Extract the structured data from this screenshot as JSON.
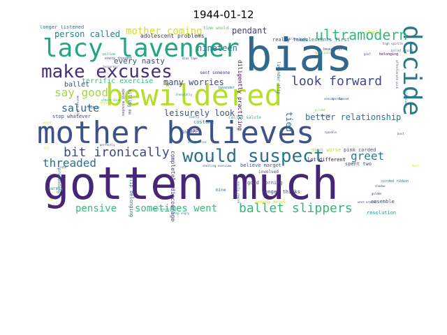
{
  "title": "1944-01-12",
  "words": [
    {
      "text": "gotten much",
      "color": "#482677"
    },
    {
      "text": "mother believes",
      "color": "#3b528b"
    },
    {
      "text": "bewildered",
      "color": "#b5de2b"
    },
    {
      "text": "bias",
      "color": "#31688e"
    },
    {
      "text": "lacy lavender",
      "color": "#21a585"
    },
    {
      "text": "decide",
      "color": "#2a788e"
    },
    {
      "text": "make excuses",
      "color": "#472d7b"
    },
    {
      "text": "would suspect",
      "color": "#2c728e"
    },
    {
      "text": "ultramodern",
      "color": "#35b779"
    },
    {
      "text": "look forward",
      "color": "#404688"
    },
    {
      "text": "ballet slippers",
      "color": "#35b779"
    },
    {
      "text": "bit ironically",
      "color": "#3e4989"
    },
    {
      "text": "threaded",
      "color": "#2e6e8e"
    },
    {
      "text": "greet",
      "color": "#2a788e"
    },
    {
      "text": "salute",
      "color": "#2f6c8e"
    },
    {
      "text": "say good",
      "color": "#a0da39"
    },
    {
      "text": "pensive",
      "color": "#38b977"
    },
    {
      "text": "sometimes went",
      "color": "#3aba76"
    },
    {
      "text": "mother coming",
      "color": "#d0e11c"
    },
    {
      "text": "person called",
      "color": "#277f8e"
    },
    {
      "text": "pendant",
      "color": "#433e85"
    },
    {
      "text": "nineteen",
      "color": "#2a788e"
    },
    {
      "text": "every nasty",
      "color": "#3e4a89"
    },
    {
      "text": "many worries",
      "color": "#3f4788"
    },
    {
      "text": "leisurely look",
      "color": "#3b528b"
    },
    {
      "text": "better relationship",
      "color": "#2c738e"
    },
    {
      "text": "terrific exercise",
      "color": "#3dbc74"
    },
    {
      "text": "ballet",
      "color": "#3e4a89"
    },
    {
      "text": "adolescent problems",
      "color": "#472d7b"
    },
    {
      "text": "tied",
      "color": "#2c738e"
    },
    {
      "text": "time would",
      "color": "#4ac16d"
    },
    {
      "text": "longer listened",
      "color": "#31688e"
    },
    {
      "text": "diligently practicing",
      "color": "#440154"
    },
    {
      "text": "completely discouraged",
      "color": "#46327e"
    },
    {
      "text": "really takes",
      "color": "#3b528b"
    },
    {
      "text": "adolescents first",
      "color": "#2a788e"
    },
    {
      "text": "lot different",
      "color": "#440154"
    },
    {
      "text": "pink corded",
      "color": "#3e4a89"
    },
    {
      "text": "believe margot",
      "color": "#3b528b"
    },
    {
      "text": "good morning",
      "color": "#3f4889"
    },
    {
      "text": "longer thinks",
      "color": "#433e85"
    },
    {
      "text": "stop whatever",
      "color": "#3e4989"
    },
    {
      "text": "costume",
      "color": "#2a788e"
    },
    {
      "text": "snap",
      "color": "#46337f"
    },
    {
      "text": "resolution",
      "color": "#21918c"
    },
    {
      "text": "ensemble",
      "color": "#3b528b"
    },
    {
      "text": "spent two",
      "color": "#3e4989"
    },
    {
      "text": "much worse",
      "color": "#b8de29"
    },
    {
      "text": "sent someone",
      "color": "#453581"
    },
    {
      "text": "called salute",
      "color": "#2fb47c"
    },
    {
      "text": "slip belonging",
      "color": "#2c728e"
    },
    {
      "text": "involved",
      "color": "#3e4989"
    },
    {
      "text": "mine",
      "color": "#2c738e"
    },
    {
      "text": "nobody knows",
      "color": "#d5e21a"
    },
    {
      "text": "warmly",
      "color": "#20928c"
    },
    {
      "text": "pretending",
      "color": "#2a788e"
    },
    {
      "text": "lavender slip",
      "color": "#2c728e"
    },
    {
      "text": "every thought",
      "color": "#3b528b"
    },
    {
      "text": "pillow",
      "color": "#20a386"
    },
    {
      "text": "bias tape",
      "color": "#46337f"
    },
    {
      "text": "ballet crazed",
      "color": "#2a788e"
    },
    {
      "text": "corded ribbon",
      "color": "#2a788e"
    },
    {
      "text": "went around",
      "color": "#3e4989"
    },
    {
      "text": "shadow",
      "color": "#3e4989"
    },
    {
      "text": "golden",
      "color": "#482878"
    },
    {
      "text": "limber",
      "color": "#3b528b"
    },
    {
      "text": "both called",
      "color": "#21918c"
    },
    {
      "text": "shelling overview",
      "color": "#3e4a89"
    },
    {
      "text": "easily rework",
      "color": "#31688e"
    },
    {
      "text": "nearly",
      "color": "#2a788e"
    },
    {
      "text": "killing me",
      "color": "#3b528b"
    },
    {
      "text": "spent minutes",
      "color": "#46327e"
    },
    {
      "text": "others cold",
      "color": "#20a386"
    },
    {
      "text": "willow",
      "color": "#3b528b"
    },
    {
      "text": "lavender",
      "color": "#2a788e"
    },
    {
      "text": "goof",
      "color": "#3e4989"
    },
    {
      "text": "belonging",
      "color": "#440154"
    },
    {
      "text": "high spirits",
      "color": "#3e4989"
    },
    {
      "text": "simply",
      "color": "#bddf26"
    },
    {
      "text": "beautiful",
      "color": "#3e4989"
    },
    {
      "text": "would always",
      "color": "#2a788e"
    },
    {
      "text": "affectionate pink",
      "color": "#3b528b"
    },
    {
      "text": "girlish",
      "color": "#73d056"
    },
    {
      "text": "decent",
      "color": "#3e4989"
    },
    {
      "text": "steps every",
      "color": "#21918c"
    },
    {
      "text": "stop angry",
      "color": "#21918c"
    },
    {
      "text": "bust",
      "color": "#3e4989"
    },
    {
      "text": "leisurely",
      "color": "#3e4989"
    },
    {
      "text": "sparkle",
      "color": "#3e4989"
    },
    {
      "text": "seeing",
      "color": "#3e4989"
    },
    {
      "text": "gilded",
      "color": "#6ece58"
    },
    {
      "text": "hardly",
      "color": "#3e4989"
    },
    {
      "text": "amused",
      "color": "#3e4989"
    },
    {
      "text": "perfectly",
      "color": "#3e4989"
    },
    {
      "text": "morning walk",
      "color": "#3e4989"
    },
    {
      "text": "stands",
      "color": "#bddf26"
    },
    {
      "text": "mean",
      "color": "#2a788e"
    },
    {
      "text": "rough",
      "color": "#3b528b"
    },
    {
      "text": "oil",
      "color": "#bddf26"
    },
    {
      "text": "cap",
      "color": "#bddf26"
    },
    {
      "text": "ironically",
      "color": "#2a788e"
    },
    {
      "text": "would",
      "color": "#bddf26"
    },
    {
      "text": "truth",
      "color": "#3e4989"
    },
    {
      "text": "bust",
      "color": "#bddf26"
    }
  ]
}
